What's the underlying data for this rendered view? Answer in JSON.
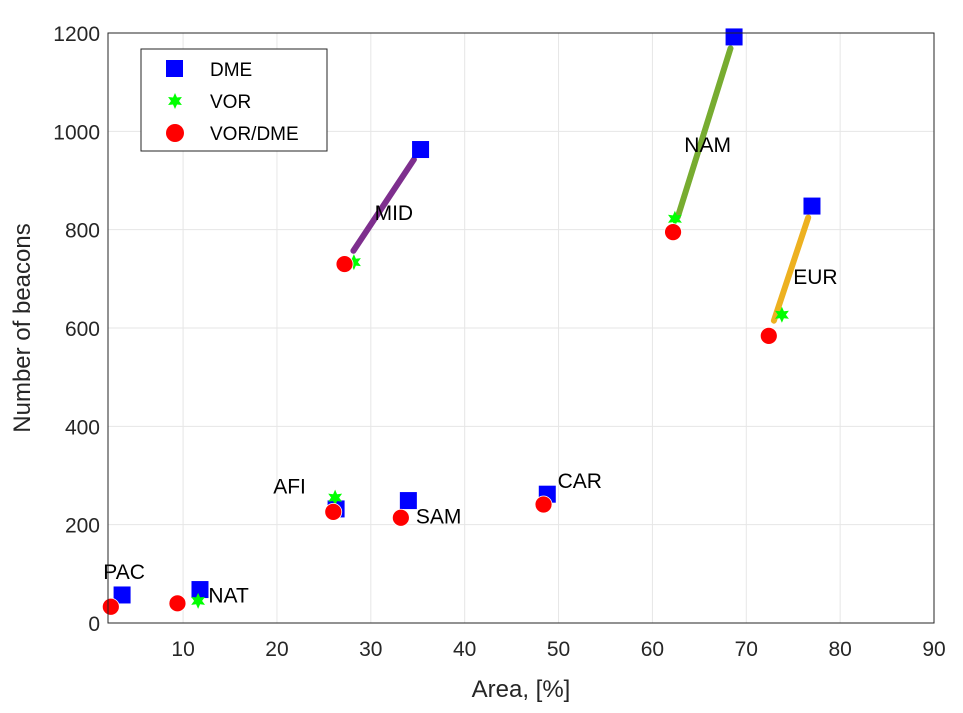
{
  "chart_data": {
    "type": "scatter",
    "xlabel": "Area, [%]",
    "ylabel": "Number of beacons",
    "xlim": [
      2,
      90
    ],
    "ylim": [
      0,
      1200
    ],
    "x_ticks": [
      10,
      20,
      30,
      40,
      50,
      60,
      70,
      80,
      90
    ],
    "y_ticks": [
      0,
      200,
      400,
      600,
      800,
      1000,
      1200
    ],
    "grid": true,
    "legend_position": "top-left",
    "legend": [
      "DME",
      "VOR",
      "VOR/DME"
    ],
    "series": [
      {
        "name": "DME",
        "marker": "square",
        "color": "#0000ff",
        "points": [
          {
            "region": "PAC",
            "x": 3.5,
            "y": 57
          },
          {
            "region": "NAT",
            "x": 11.8,
            "y": 68
          },
          {
            "region": "AFI",
            "x": 26.3,
            "y": 232
          },
          {
            "region": "SAM",
            "x": 34.0,
            "y": 249
          },
          {
            "region": "CAR",
            "x": 48.8,
            "y": 262
          },
          {
            "region": "MID",
            "x": 35.3,
            "y": 963
          },
          {
            "region": "NAM",
            "x": 68.7,
            "y": 1192
          },
          {
            "region": "EUR",
            "x": 77.0,
            "y": 848
          }
        ]
      },
      {
        "name": "VOR",
        "marker": "star",
        "color": "#00ff00",
        "points": [
          {
            "region": "PAC",
            "x": 2.3,
            "y": 35
          },
          {
            "region": "NAT",
            "x": 11.6,
            "y": 45
          },
          {
            "region": "AFI",
            "x": 26.2,
            "y": 255
          },
          {
            "region": "SAM",
            "x": 33.3,
            "y": 215
          },
          {
            "region": "CAR",
            "x": 48.5,
            "y": 243
          },
          {
            "region": "MID",
            "x": 28.2,
            "y": 734
          },
          {
            "region": "NAM",
            "x": 62.4,
            "y": 822
          },
          {
            "region": "EUR",
            "x": 73.8,
            "y": 627
          }
        ]
      },
      {
        "name": "VOR/DME",
        "marker": "circle",
        "color": "#ff0000",
        "points": [
          {
            "region": "PAC",
            "x": 2.3,
            "y": 33
          },
          {
            "region": "NAT",
            "x": 9.4,
            "y": 40
          },
          {
            "region": "AFI",
            "x": 26.0,
            "y": 226
          },
          {
            "region": "SAM",
            "x": 33.2,
            "y": 214
          },
          {
            "region": "CAR",
            "x": 48.4,
            "y": 241
          },
          {
            "region": "MID",
            "x": 27.2,
            "y": 730
          },
          {
            "region": "NAM",
            "x": 62.2,
            "y": 795
          },
          {
            "region": "EUR",
            "x": 72.4,
            "y": 584
          }
        ]
      }
    ],
    "trend_lines": [
      {
        "region": "MID",
        "color": "#7e2f8e",
        "from": [
          27.2,
          730
        ],
        "to": [
          35.3,
          963
        ]
      },
      {
        "region": "NAM",
        "color": "#77ac30",
        "from": [
          62.2,
          795
        ],
        "to": [
          68.7,
          1192
        ]
      },
      {
        "region": "EUR",
        "color": "#edb120",
        "from": [
          72.4,
          584
        ],
        "to": [
          77.0,
          848
        ]
      }
    ],
    "annotations": [
      {
        "text": "PAC",
        "x": 1.5,
        "y": 90
      },
      {
        "text": "NAT",
        "x": 12.7,
        "y": 42
      },
      {
        "text": "AFI",
        "x": 19.6,
        "y": 263
      },
      {
        "text": "SAM",
        "x": 34.8,
        "y": 202
      },
      {
        "text": "CAR",
        "x": 49.9,
        "y": 275
      },
      {
        "text": "MID",
        "x": 30.4,
        "y": 820
      },
      {
        "text": "NAM",
        "x": 63.4,
        "y": 958
      },
      {
        "text": "EUR",
        "x": 75.0,
        "y": 690
      }
    ]
  }
}
